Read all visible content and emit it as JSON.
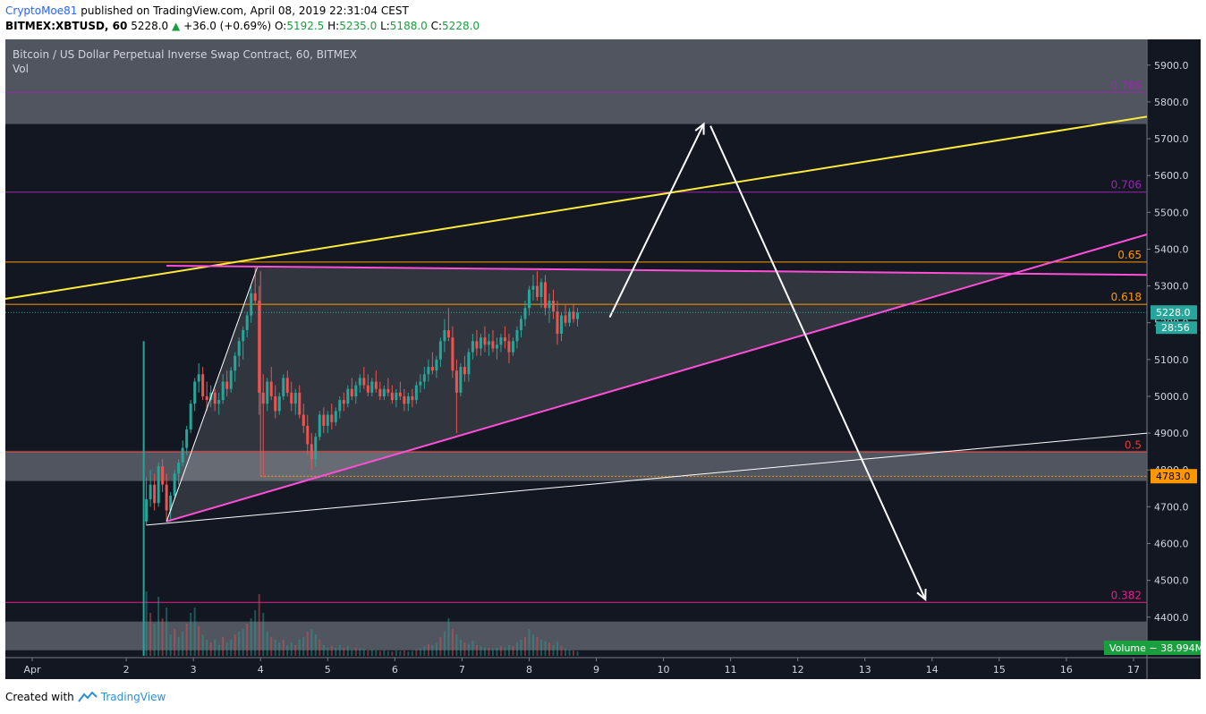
{
  "header": {
    "author": "CryptoMoe81",
    "published": "published on TradingView.com, April 08, 2019 22:31:04 CEST",
    "symbol": "BITMEX:XBTUSD, 60",
    "last": "5228.0",
    "change_arrow": "▲",
    "change": "+36.0 (+0.69%)",
    "o_label": "O:",
    "o": "5192.5",
    "h_label": "H:",
    "h": "5235.0",
    "l_label": "L:",
    "l": "5188.0",
    "c_label": "C:",
    "c": "5228.0"
  },
  "chart_overlay": {
    "title": "Bitcoin / US Dollar Perpetual Inverse Swap Contract, 60, BITMEX",
    "vol_label": "Vol",
    "price_tag": "5228.0",
    "countdown": "28:56",
    "level_tag": "4783.0",
    "volume_tag": "Volume − 38.994M"
  },
  "footer": {
    "created_with": "Created with",
    "brand": "TradingView"
  },
  "colors": {
    "background": "#131722",
    "panel_border": "#ffffff",
    "up_candle": "#26a69a",
    "down_candle": "#ef5350",
    "yellow": "#ffeb3b",
    "magenta": "#e040fb",
    "pink_line": "#ff4fd8",
    "fib_786": "#9c27b0",
    "fib_65": "#ff9800",
    "fib_5": "#e53935",
    "fib_382": "#e91e8c",
    "tag_green": "#26a69a",
    "tag_orange": "#ff9800",
    "volume_green": "#1b9e3f"
  },
  "chart_data": {
    "type": "candlestick",
    "y_ticks": [
      "5900.0",
      "5800.0",
      "5700.0",
      "5600.0",
      "5500.0",
      "5400.0",
      "5300.0",
      "5200.0",
      "5100.0",
      "5000.0",
      "4900.0",
      "4800.0",
      "4700.0",
      "4600.0",
      "4500.0",
      "4400.0"
    ],
    "x_ticks": [
      "Apr",
      "2",
      "3",
      "4",
      "5",
      "6",
      "7",
      "8",
      "9",
      "10",
      "11",
      "12",
      "13",
      "14",
      "15",
      "16",
      "17"
    ],
    "ylim": [
      4290,
      5970
    ],
    "x_domain_days": [
      0.2,
      17.2
    ],
    "fib_levels": [
      {
        "label": "0.786",
        "price": 5825,
        "color": "#9c27b0"
      },
      {
        "label": "0.706",
        "price": 5555,
        "color": "#9c27b0"
      },
      {
        "label": "0.65",
        "price": 5365,
        "color": "#ff9800"
      },
      {
        "label": "0.618",
        "price": 5250,
        "color": "#ff9800"
      },
      {
        "label": "0.5",
        "price": 4848,
        "color": "#e53935"
      },
      {
        "label": "0.382",
        "price": 4440,
        "color": "#e91e8c"
      }
    ],
    "zones": [
      {
        "from": 5740,
        "to": 5970
      },
      {
        "from": 4770,
        "to": 4852
      },
      {
        "from": 4310,
        "to": 4388
      }
    ],
    "trendlines": [
      {
        "name": "upper-yellow",
        "color": "#ffeb3b",
        "points": [
          [
            0.2,
            5265
          ],
          [
            17.2,
            5760
          ]
        ]
      },
      {
        "name": "triangle-top",
        "color": "#ff4fd8",
        "points": [
          [
            2.6,
            5355
          ],
          [
            17.2,
            5330
          ]
        ]
      },
      {
        "name": "triangle-bottom",
        "color": "#ff4fd8",
        "points": [
          [
            2.6,
            4660
          ],
          [
            17.2,
            5440
          ]
        ]
      },
      {
        "name": "long-white",
        "color": "#ffffff",
        "points": [
          [
            2.3,
            4650
          ],
          [
            17.2,
            4900
          ]
        ]
      },
      {
        "name": "impulse-white",
        "color": "#ffffff",
        "points": [
          [
            2.6,
            4660
          ],
          [
            3.95,
            5350
          ]
        ]
      }
    ],
    "support_line": {
      "price": 4783,
      "from_day": 4.0,
      "to_day": 17.2
    },
    "forecast_arrows": [
      {
        "from": [
          9.2,
          5215
        ],
        "to": [
          10.6,
          5740
        ]
      },
      {
        "from": [
          10.7,
          5735
        ],
        "to": [
          13.9,
          4448
        ]
      }
    ],
    "candles": [
      [
        2.3,
        4660,
        4780,
        4650,
        4720
      ],
      [
        2.36,
        4720,
        4800,
        4700,
        4760
      ],
      [
        2.42,
        4760,
        4790,
        4690,
        4710
      ],
      [
        2.48,
        4710,
        4820,
        4700,
        4810
      ],
      [
        2.54,
        4810,
        4830,
        4740,
        4760
      ],
      [
        2.6,
        4760,
        4790,
        4660,
        4690
      ],
      [
        2.66,
        4690,
        4740,
        4660,
        4730
      ],
      [
        2.72,
        4730,
        4800,
        4720,
        4790
      ],
      [
        2.78,
        4790,
        4830,
        4760,
        4820
      ],
      [
        2.84,
        4820,
        4880,
        4810,
        4860
      ],
      [
        2.9,
        4860,
        4920,
        4840,
        4910
      ],
      [
        2.96,
        4910,
        4990,
        4900,
        4980
      ],
      [
        3.02,
        4980,
        5050,
        4960,
        5040
      ],
      [
        3.08,
        5040,
        5090,
        5010,
        5060
      ],
      [
        3.14,
        5060,
        5080,
        4990,
        5000
      ],
      [
        3.2,
        5000,
        5040,
        4960,
        4990
      ],
      [
        3.26,
        4990,
        5030,
        4970,
        5010
      ],
      [
        3.32,
        5010,
        5020,
        4960,
        4980
      ],
      [
        3.38,
        4980,
        5010,
        4950,
        4990
      ],
      [
        3.44,
        4990,
        5060,
        4980,
        5040
      ],
      [
        3.5,
        5040,
        5070,
        5000,
        5020
      ],
      [
        3.56,
        5020,
        5080,
        5010,
        5070
      ],
      [
        3.62,
        5070,
        5120,
        5040,
        5110
      ],
      [
        3.68,
        5110,
        5160,
        5080,
        5150
      ],
      [
        3.74,
        5150,
        5190,
        5100,
        5180
      ],
      [
        3.8,
        5180,
        5230,
        5160,
        5220
      ],
      [
        3.86,
        5220,
        5300,
        5200,
        5280
      ],
      [
        3.92,
        5280,
        5350,
        5250,
        5260
      ],
      [
        3.98,
        5260,
        5300,
        4950,
        5010
      ],
      [
        4.04,
        5010,
        5060,
        4780,
        4980
      ],
      [
        4.1,
        4980,
        5050,
        4960,
        5040
      ],
      [
        4.16,
        5040,
        5080,
        4990,
        5000
      ],
      [
        4.22,
        5000,
        5030,
        4940,
        4960
      ],
      [
        4.28,
        4960,
        5010,
        4950,
        5000
      ],
      [
        4.34,
        5000,
        5060,
        4990,
        5050
      ],
      [
        4.4,
        5050,
        5070,
        5000,
        5010
      ],
      [
        4.46,
        5010,
        5040,
        4960,
        4980
      ],
      [
        4.52,
        4980,
        5020,
        4950,
        5010
      ],
      [
        4.58,
        5010,
        5030,
        4940,
        4950
      ],
      [
        4.64,
        4950,
        4980,
        4900,
        4920
      ],
      [
        4.7,
        4920,
        4950,
        4840,
        4870
      ],
      [
        4.76,
        4870,
        4900,
        4800,
        4830
      ],
      [
        4.82,
        4830,
        4900,
        4810,
        4890
      ],
      [
        4.88,
        4890,
        4960,
        4880,
        4950
      ],
      [
        4.94,
        4950,
        4970,
        4900,
        4920
      ],
      [
        5.0,
        4920,
        4960,
        4900,
        4950
      ],
      [
        5.06,
        4950,
        4980,
        4910,
        4930
      ],
      [
        5.12,
        4930,
        4970,
        4920,
        4960
      ],
      [
        5.18,
        4960,
        5000,
        4940,
        4990
      ],
      [
        5.24,
        4990,
        5010,
        4960,
        4980
      ],
      [
        5.3,
        4980,
        5030,
        4970,
        5020
      ],
      [
        5.36,
        5020,
        5050,
        4990,
        5000
      ],
      [
        5.42,
        5000,
        5040,
        4980,
        5030
      ],
      [
        5.48,
        5030,
        5060,
        5010,
        5050
      ],
      [
        5.54,
        5050,
        5080,
        5020,
        5030
      ],
      [
        5.6,
        5030,
        5060,
        5000,
        5010
      ],
      [
        5.66,
        5010,
        5050,
        5000,
        5040
      ],
      [
        5.72,
        5040,
        5070,
        5010,
        5020
      ],
      [
        5.78,
        5020,
        5040,
        4990,
        5000
      ],
      [
        5.84,
        5000,
        5030,
        4990,
        5020
      ],
      [
        5.9,
        5020,
        5050,
        5000,
        5010
      ],
      [
        5.96,
        5010,
        5030,
        4980,
        4990
      ],
      [
        6.02,
        4990,
        5020,
        4970,
        5010
      ],
      [
        6.08,
        5010,
        5040,
        4990,
        5000
      ],
      [
        6.14,
        5000,
        5020,
        4960,
        4980
      ],
      [
        6.2,
        4980,
        5010,
        4960,
        5000
      ],
      [
        6.26,
        5000,
        5020,
        4970,
        4990
      ],
      [
        6.32,
        4990,
        5040,
        4980,
        5030
      ],
      [
        6.38,
        5030,
        5060,
        5010,
        5040
      ],
      [
        6.44,
        5040,
        5080,
        5020,
        5060
      ],
      [
        6.5,
        5060,
        5100,
        5040,
        5080
      ],
      [
        6.56,
        5080,
        5120,
        5060,
        5070
      ],
      [
        6.62,
        5070,
        5110,
        5050,
        5100
      ],
      [
        6.68,
        5100,
        5160,
        5080,
        5150
      ],
      [
        6.74,
        5150,
        5210,
        5120,
        5180
      ],
      [
        6.8,
        5180,
        5240,
        5150,
        5160
      ],
      [
        6.86,
        5160,
        5190,
        5050,
        5070
      ],
      [
        6.92,
        5070,
        5100,
        4900,
        5010
      ],
      [
        6.98,
        5010,
        5090,
        5000,
        5080
      ],
      [
        7.04,
        5080,
        5110,
        5040,
        5060
      ],
      [
        7.1,
        5060,
        5130,
        5040,
        5120
      ],
      [
        7.16,
        5120,
        5170,
        5100,
        5150
      ],
      [
        7.22,
        5150,
        5180,
        5110,
        5130
      ],
      [
        7.28,
        5130,
        5170,
        5110,
        5160
      ],
      [
        7.34,
        5160,
        5190,
        5120,
        5140
      ],
      [
        7.4,
        5140,
        5170,
        5110,
        5150
      ],
      [
        7.46,
        5150,
        5180,
        5120,
        5130
      ],
      [
        7.52,
        5130,
        5160,
        5100,
        5140
      ],
      [
        7.58,
        5140,
        5170,
        5120,
        5160
      ],
      [
        7.64,
        5160,
        5190,
        5130,
        5150
      ],
      [
        7.7,
        5150,
        5170,
        5090,
        5120
      ],
      [
        7.76,
        5120,
        5160,
        5110,
        5150
      ],
      [
        7.82,
        5150,
        5190,
        5130,
        5180
      ],
      [
        7.88,
        5180,
        5220,
        5160,
        5210
      ],
      [
        7.94,
        5210,
        5260,
        5190,
        5240
      ],
      [
        8.0,
        5240,
        5300,
        5220,
        5290
      ],
      [
        8.06,
        5290,
        5330,
        5260,
        5300
      ],
      [
        8.12,
        5300,
        5340,
        5260,
        5270
      ],
      [
        8.18,
        5270,
        5320,
        5240,
        5310
      ],
      [
        8.24,
        5310,
        5330,
        5220,
        5240
      ],
      [
        8.3,
        5240,
        5280,
        5200,
        5260
      ],
      [
        8.36,
        5260,
        5290,
        5210,
        5230
      ],
      [
        8.42,
        5230,
        5260,
        5140,
        5170
      ],
      [
        8.48,
        5170,
        5230,
        5150,
        5220
      ],
      [
        8.54,
        5220,
        5250,
        5190,
        5200
      ],
      [
        8.6,
        5200,
        5240,
        5190,
        5230
      ],
      [
        8.66,
        5230,
        5250,
        5200,
        5210
      ],
      [
        8.72,
        5210,
        5240,
        5190,
        5228
      ]
    ],
    "volume_bars": [
      [
        2.3,
        120
      ],
      [
        2.36,
        80
      ],
      [
        2.42,
        60
      ],
      [
        2.48,
        110
      ],
      [
        2.54,
        70
      ],
      [
        2.6,
        90
      ],
      [
        2.66,
        40
      ],
      [
        2.72,
        50
      ],
      [
        2.78,
        35
      ],
      [
        2.84,
        45
      ],
      [
        2.9,
        60
      ],
      [
        2.96,
        80
      ],
      [
        3.02,
        90
      ],
      [
        3.08,
        55
      ],
      [
        3.14,
        40
      ],
      [
        3.2,
        30
      ],
      [
        3.26,
        25
      ],
      [
        3.32,
        30
      ],
      [
        3.38,
        20
      ],
      [
        3.44,
        35
      ],
      [
        3.5,
        25
      ],
      [
        3.56,
        30
      ],
      [
        3.62,
        40
      ],
      [
        3.68,
        45
      ],
      [
        3.74,
        50
      ],
      [
        3.8,
        60
      ],
      [
        3.86,
        70
      ],
      [
        3.92,
        85
      ],
      [
        3.98,
        115
      ],
      [
        4.04,
        80
      ],
      [
        4.1,
        45
      ],
      [
        4.16,
        35
      ],
      [
        4.22,
        30
      ],
      [
        4.28,
        25
      ],
      [
        4.34,
        30
      ],
      [
        4.4,
        20
      ],
      [
        4.46,
        25
      ],
      [
        4.52,
        20
      ],
      [
        4.58,
        30
      ],
      [
        4.64,
        35
      ],
      [
        4.7,
        45
      ],
      [
        4.76,
        50
      ],
      [
        4.82,
        40
      ],
      [
        4.88,
        30
      ],
      [
        4.94,
        20
      ],
      [
        5.0,
        15
      ],
      [
        5.06,
        18
      ],
      [
        5.12,
        15
      ],
      [
        5.18,
        20
      ],
      [
        5.24,
        15
      ],
      [
        5.3,
        18
      ],
      [
        5.36,
        12
      ],
      [
        5.42,
        15
      ],
      [
        5.48,
        14
      ],
      [
        5.54,
        12
      ],
      [
        5.6,
        10
      ],
      [
        5.66,
        12
      ],
      [
        5.72,
        10
      ],
      [
        5.78,
        9
      ],
      [
        5.84,
        11
      ],
      [
        5.9,
        9
      ],
      [
        5.96,
        8
      ],
      [
        6.02,
        10
      ],
      [
        6.08,
        9
      ],
      [
        6.14,
        10
      ],
      [
        6.2,
        8
      ],
      [
        6.26,
        9
      ],
      [
        6.32,
        12
      ],
      [
        6.38,
        14
      ],
      [
        6.44,
        18
      ],
      [
        6.5,
        22
      ],
      [
        6.56,
        20
      ],
      [
        6.62,
        24
      ],
      [
        6.68,
        35
      ],
      [
        6.74,
        45
      ],
      [
        6.8,
        70
      ],
      [
        6.86,
        50
      ],
      [
        6.92,
        40
      ],
      [
        6.98,
        30
      ],
      [
        7.04,
        25
      ],
      [
        7.1,
        22
      ],
      [
        7.16,
        28
      ],
      [
        7.22,
        20
      ],
      [
        7.28,
        18
      ],
      [
        7.34,
        16
      ],
      [
        7.4,
        15
      ],
      [
        7.46,
        14
      ],
      [
        7.52,
        15
      ],
      [
        7.58,
        18
      ],
      [
        7.64,
        16
      ],
      [
        7.7,
        20
      ],
      [
        7.76,
        18
      ],
      [
        7.82,
        25
      ],
      [
        7.88,
        30
      ],
      [
        7.94,
        35
      ],
      [
        8.0,
        50
      ],
      [
        8.06,
        40
      ],
      [
        8.12,
        35
      ],
      [
        8.18,
        30
      ],
      [
        8.24,
        28
      ],
      [
        8.3,
        24
      ],
      [
        8.36,
        20
      ],
      [
        8.42,
        26
      ],
      [
        8.48,
        18
      ],
      [
        8.54,
        14
      ],
      [
        8.6,
        12
      ],
      [
        8.66,
        10
      ],
      [
        8.72,
        8
      ]
    ],
    "volume_spike": {
      "day": 2.26,
      "value": 100
    }
  }
}
